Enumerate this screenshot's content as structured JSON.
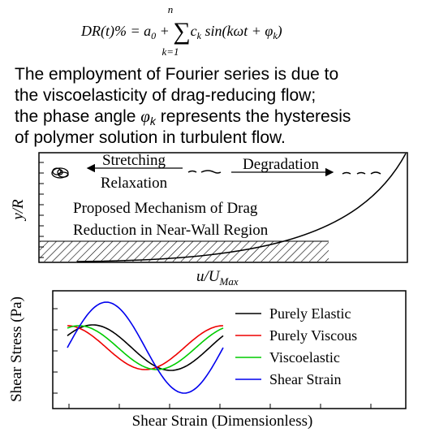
{
  "formula": [
    "DR(t)% = a",
    "0",
    " + ",
    "∑",
    "k=1",
    "n",
    "c",
    "k",
    " sin(kωt + φ",
    "k",
    ")"
  ],
  "text": {
    "line1": "The employment of Fourier series is due to",
    "line2": "the viscoelasticity of drag-reducing flow;",
    "line3": [
      "the phase angle ",
      "φ",
      "k",
      " represents the hysteresis"
    ],
    "line4": "of polymer solution in turbulent flow."
  },
  "mechanism": {
    "stretching": "Stretching",
    "relaxation": "Relaxation",
    "degradation": "Degradation",
    "title1": "Proposed Mechanism of  Drag",
    "title2": "Reduction in Near-Wall Region",
    "y_label": "y/R",
    "x_label": [
      "u/U",
      "Max"
    ]
  },
  "chart": {
    "y_label": "Shear Stress (Pa)",
    "x_label": "Shear Strain (Dimensionless)",
    "legend": [
      "Purely Elastic",
      "Purely Viscous",
      "Viscoelastic",
      "Shear Strain"
    ]
  }
}
